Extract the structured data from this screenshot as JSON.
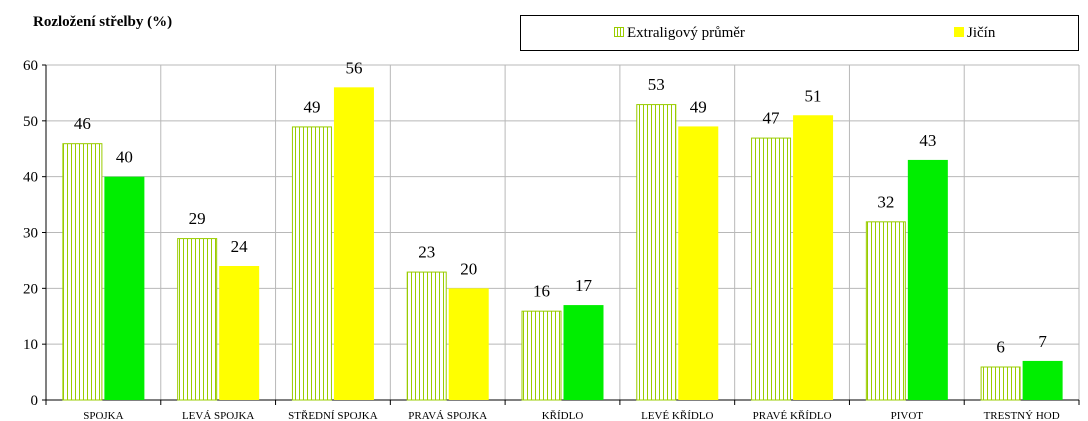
{
  "chart_data": {
    "type": "bar",
    "title": "Rozložení střelby (%)",
    "categories": [
      "SPOJKA",
      "LEVÁ SPOJKA",
      "STŘEDNÍ SPOJKA",
      "PRAVÁ SPOJKA",
      "KŘÍDLO",
      "LEVÉ KŘÍDLO",
      "PRAVÉ KŘÍDLO",
      "PIVOT",
      "TRESTNÝ HOD"
    ],
    "series": [
      {
        "name": "Extraligový průměr",
        "values": [
          46,
          29,
          49,
          23,
          16,
          53,
          47,
          32,
          6
        ],
        "color": "#99cc00",
        "fill": "vertical-hatch"
      },
      {
        "name": "Jičín",
        "values": [
          40,
          24,
          56,
          20,
          17,
          49,
          51,
          43,
          7
        ],
        "color": "#ffff00",
        "point_colors": [
          "#00ee00",
          "#ffff00",
          "#ffff00",
          "#ffff00",
          "#00ee00",
          "#ffff00",
          "#ffff00",
          "#00ee00",
          "#00ee00"
        ]
      }
    ],
    "ylim": [
      0,
      60
    ],
    "yticks": [
      0,
      10,
      20,
      30,
      40,
      50,
      60
    ],
    "grid": true,
    "legend_position": "top-right",
    "data_labels": true,
    "xlabel": "",
    "ylabel": ""
  }
}
